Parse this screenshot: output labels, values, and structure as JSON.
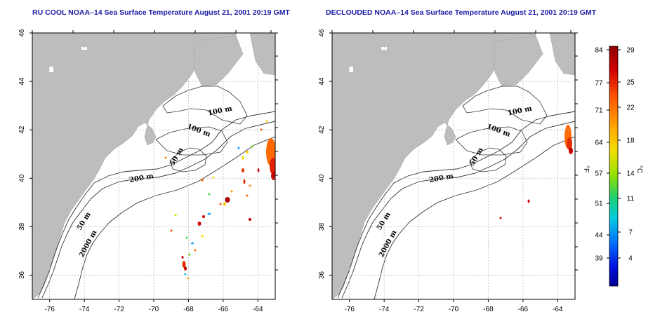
{
  "panels": [
    {
      "title": "RU COOL NOAA–14 Sea Surface Temperature August 21, 2001 20:19 GMT"
    },
    {
      "title": "DECLOUDED NOAA–14 Sea Surface Temperature August 21, 2001 20:19 GMT"
    }
  ],
  "map": {
    "lon_ticks": [
      -76,
      -74,
      -72,
      -70,
      -68,
      -66,
      -64
    ],
    "lat_ticks": [
      36,
      38,
      40,
      42,
      44,
      46
    ],
    "lon_range": [
      -77,
      -63
    ],
    "lat_range": [
      35,
      46
    ],
    "contour_labels": [
      "100 m",
      "100 m",
      "50 m",
      "200 m",
      "50 m",
      "2000 m"
    ],
    "colors": {
      "land": "#bdbdbd",
      "water": "#ffffff",
      "grid": "#bcbcbc",
      "contour": "#333333"
    }
  },
  "colorbar": {
    "fahrenheit_ticks": [
      "84",
      "77",
      "71",
      "64",
      "57",
      "51",
      "44",
      "39"
    ],
    "celsius_ticks": [
      "29",
      "25",
      "22",
      "18",
      "14",
      "11",
      "7",
      "4"
    ],
    "f_unit": "°F",
    "c_unit": "°C"
  }
}
